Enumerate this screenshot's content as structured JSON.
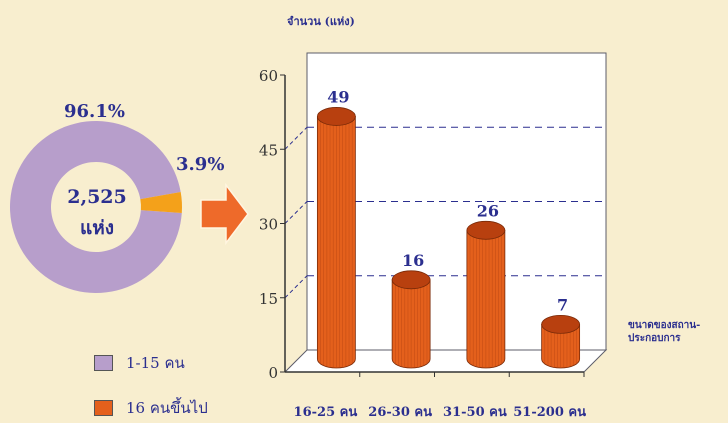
{
  "colors": {
    "background": "#f8eecf",
    "text": "#2b2f8f",
    "donut_main": "#b79ecb",
    "donut_small": "#f4a11a",
    "bar": "#e4601c",
    "bar_top": "#b8400f",
    "arrow": "#ee6a2a",
    "grid": "#2b2f8f"
  },
  "chart_data": [
    {
      "type": "pie",
      "style": "donut",
      "center_value": "2,525",
      "center_unit": "แห่ง",
      "slices": [
        {
          "label": "1-15 คน",
          "value": 96.1,
          "display": "96.1%",
          "color": "#b79ecb"
        },
        {
          "label": "16 คนขึ้นไป",
          "value": 3.9,
          "display": "3.9%",
          "color": "#f4a11a"
        }
      ],
      "legend": {
        "placement": "bottom-left",
        "entries": [
          {
            "label": "1-15 คน",
            "color": "#b79ecb"
          },
          {
            "label": "16 คนขึ้นไป",
            "color": "#e4601c"
          }
        ]
      }
    },
    {
      "type": "bar",
      "style": "3d-cylinder",
      "categories": [
        "16-25 คน",
        "26-30 คน",
        "31-50 คน",
        "51-200 คน"
      ],
      "values": [
        49,
        16,
        26,
        7
      ],
      "ylabel": "จำนวน (แห่ง)",
      "xlabel": "ขนาดของสถาน-ประกอบการ",
      "xlabel_lines": [
        "ขนาดของสถาน-",
        "ประกอบการ"
      ],
      "ylim": [
        0,
        60
      ],
      "yticks": [
        0,
        15,
        30,
        45,
        60
      ],
      "grid": true
    }
  ]
}
